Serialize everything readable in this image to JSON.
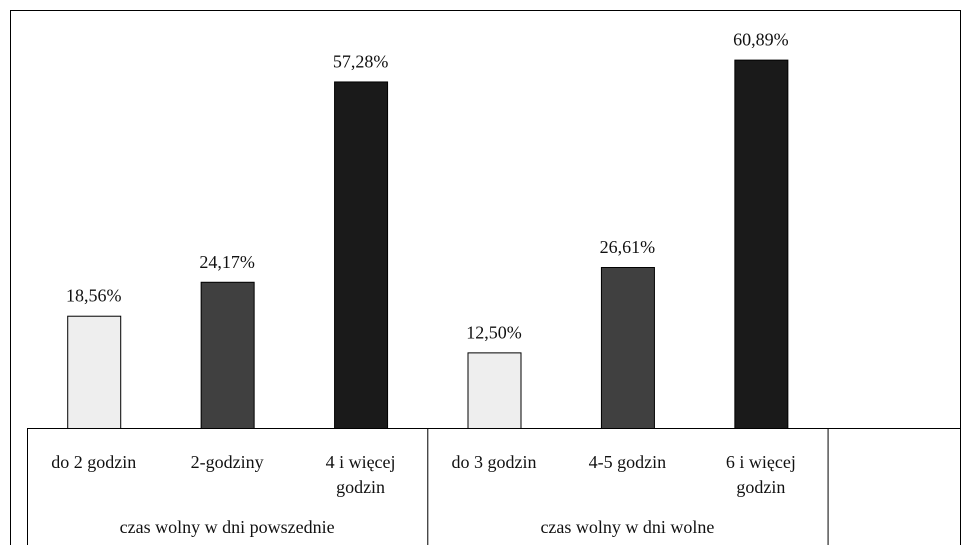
{
  "chart_data": {
    "type": "bar",
    "categories": [
      "do 2 godzin",
      "2-godziny",
      "4 i więcej godzin",
      "do 3 godzin",
      "4-5 godzin",
      "6 i więcej godzin"
    ],
    "values": [
      18.56,
      24.17,
      57.28,
      12.5,
      26.61,
      60.89
    ],
    "value_labels": [
      "18,56%",
      "24,17%",
      "57,28%",
      "12,50%",
      "26,61%",
      "60,89%"
    ],
    "colors": [
      "#eeeeee",
      "#404040",
      "#1a1a1a",
      "#eeeeee",
      "#404040",
      "#1a1a1a"
    ],
    "group_labels": [
      "czas wolny w dni powszednie",
      "czas wolny w dni wolne"
    ]
  }
}
